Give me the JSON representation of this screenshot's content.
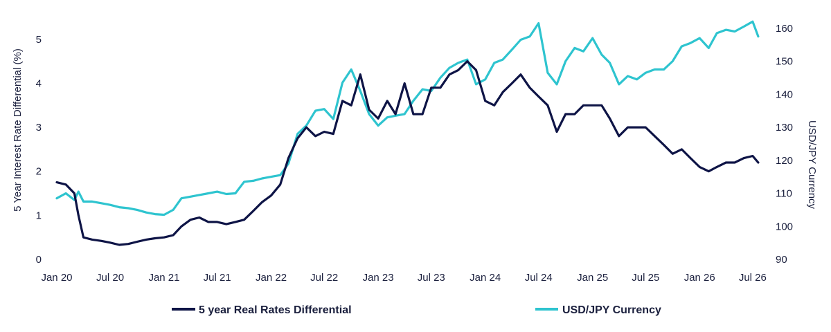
{
  "chart_data": {
    "type": "line",
    "xlabel": "",
    "ylabel_left": "5 Year Interest Rate Differential (%)",
    "ylabel_right": "USD/JPY Currency",
    "x_ticks": [
      "Jan 20",
      "Jul 20",
      "Jan 21",
      "Jul 21",
      "Jan 22",
      "Jul 22",
      "Jan 23",
      "Jul 23",
      "Jan 24",
      "Jul 24",
      "Jan 25",
      "Jul 25",
      "Jan 26",
      "Jul 26"
    ],
    "y_left_ticks": [
      0,
      1,
      2,
      3,
      4,
      5
    ],
    "y_right_ticks": [
      90,
      100,
      110,
      120,
      130,
      140,
      150,
      160
    ],
    "ylim_left": [
      0,
      5.5
    ],
    "ylim_right": [
      90,
      163.3
    ],
    "x_range": [
      "2020-01-01",
      "2026-08-01"
    ],
    "grid": false,
    "legend_position": "bottom",
    "colors": {
      "rates": "#0e1446",
      "usdjpy": "#2ec4cf",
      "text": "#1a1f3d"
    },
    "series": [
      {
        "name": "5 year Real Rates Differential",
        "axis": "left",
        "x": [
          "2020-01-01",
          "2020-02-01",
          "2020-03-01",
          "2020-03-15",
          "2020-04-01",
          "2020-05-01",
          "2020-06-01",
          "2020-07-01",
          "2020-08-01",
          "2020-09-01",
          "2020-10-01",
          "2020-11-01",
          "2020-12-01",
          "2021-01-01",
          "2021-02-01",
          "2021-03-01",
          "2021-04-01",
          "2021-05-01",
          "2021-06-01",
          "2021-07-01",
          "2021-08-01",
          "2021-09-01",
          "2021-10-01",
          "2021-11-01",
          "2021-12-01",
          "2022-01-01",
          "2022-02-01",
          "2022-03-01",
          "2022-04-01",
          "2022-05-01",
          "2022-06-01",
          "2022-07-01",
          "2022-08-01",
          "2022-09-01",
          "2022-10-01",
          "2022-11-01",
          "2022-12-01",
          "2023-01-01",
          "2023-02-01",
          "2023-03-01",
          "2023-04-01",
          "2023-05-01",
          "2023-06-01",
          "2023-07-01",
          "2023-08-01",
          "2023-09-01",
          "2023-10-01",
          "2023-11-01",
          "2023-12-01",
          "2024-01-01",
          "2024-02-01",
          "2024-03-01",
          "2024-04-01",
          "2024-05-01",
          "2024-06-01",
          "2024-07-01",
          "2024-08-01",
          "2024-09-01",
          "2024-10-01",
          "2024-11-01",
          "2024-12-01",
          "2025-01-01",
          "2025-02-01",
          "2025-03-01",
          "2025-04-01",
          "2025-05-01",
          "2025-06-01",
          "2025-07-01",
          "2025-08-01",
          "2025-09-01",
          "2025-10-01",
          "2025-11-01",
          "2025-12-01",
          "2026-01-01",
          "2026-02-01",
          "2026-03-01",
          "2026-04-01",
          "2026-05-01",
          "2026-06-01",
          "2026-07-01",
          "2026-07-20"
        ],
        "values": [
          1.75,
          1.7,
          1.5,
          1.0,
          0.5,
          0.45,
          0.42,
          0.38,
          0.33,
          0.35,
          0.4,
          0.45,
          0.48,
          0.5,
          0.55,
          0.75,
          0.9,
          0.95,
          0.85,
          0.85,
          0.8,
          0.85,
          0.9,
          1.1,
          1.3,
          1.45,
          1.7,
          2.3,
          2.75,
          3.0,
          2.8,
          2.9,
          2.85,
          3.6,
          3.5,
          4.2,
          3.4,
          3.2,
          3.6,
          3.3,
          4.0,
          3.3,
          3.3,
          3.9,
          3.9,
          4.2,
          4.3,
          4.5,
          4.3,
          3.6,
          3.5,
          3.8,
          4.0,
          4.2,
          3.9,
          3.7,
          3.5,
          2.9,
          3.3,
          3.3,
          3.5,
          3.5,
          3.5,
          3.2,
          2.8,
          3.0,
          3.0,
          3.0,
          2.8,
          2.6,
          2.4,
          2.5,
          2.3,
          2.1,
          2.0,
          2.1,
          2.2,
          2.2,
          2.3,
          2.35,
          2.2
        ]
      },
      {
        "name": "USD/JPY Currency",
        "axis": "right",
        "x": [
          "2020-01-01",
          "2020-02-01",
          "2020-03-01",
          "2020-03-15",
          "2020-04-01",
          "2020-05-01",
          "2020-06-01",
          "2020-07-01",
          "2020-08-01",
          "2020-09-01",
          "2020-10-01",
          "2020-11-01",
          "2020-12-01",
          "2021-01-01",
          "2021-02-01",
          "2021-03-01",
          "2021-04-01",
          "2021-05-01",
          "2021-06-01",
          "2021-07-01",
          "2021-08-01",
          "2021-09-01",
          "2021-10-01",
          "2021-11-01",
          "2021-12-01",
          "2022-01-01",
          "2022-02-01",
          "2022-03-01",
          "2022-04-01",
          "2022-05-01",
          "2022-06-01",
          "2022-07-01",
          "2022-08-01",
          "2022-09-01",
          "2022-10-01",
          "2022-11-01",
          "2022-12-01",
          "2023-01-01",
          "2023-02-01",
          "2023-03-01",
          "2023-04-01",
          "2023-05-01",
          "2023-06-01",
          "2023-07-01",
          "2023-08-01",
          "2023-09-01",
          "2023-10-01",
          "2023-11-01",
          "2023-12-01",
          "2024-01-01",
          "2024-02-01",
          "2024-03-01",
          "2024-04-01",
          "2024-05-01",
          "2024-06-01",
          "2024-07-01",
          "2024-08-01",
          "2024-09-01",
          "2024-10-01",
          "2024-11-01",
          "2024-12-01",
          "2025-01-01",
          "2025-02-01",
          "2025-03-01",
          "2025-04-01",
          "2025-05-01",
          "2025-06-01",
          "2025-07-01",
          "2025-08-01",
          "2025-09-01",
          "2025-10-01",
          "2025-11-01",
          "2025-12-01",
          "2026-01-01",
          "2026-02-01",
          "2026-03-01",
          "2026-04-01",
          "2026-05-01",
          "2026-06-01",
          "2026-07-01",
          "2026-07-20"
        ],
        "values": [
          108.5,
          110.0,
          108.0,
          110.5,
          107.5,
          107.5,
          107.0,
          106.5,
          105.8,
          105.5,
          105.0,
          104.2,
          103.7,
          103.5,
          105.0,
          108.5,
          109.0,
          109.5,
          110.0,
          110.5,
          109.8,
          110.0,
          113.5,
          113.8,
          114.5,
          115.0,
          115.5,
          119.0,
          128.0,
          130.5,
          135.0,
          135.5,
          132.5,
          143.5,
          147.5,
          141.0,
          134.0,
          130.5,
          133.0,
          133.5,
          134.0,
          138.0,
          141.5,
          141.0,
          145.0,
          148.0,
          149.5,
          150.5,
          143.0,
          144.5,
          149.5,
          150.5,
          153.5,
          156.5,
          157.5,
          161.5,
          146.5,
          143.0,
          150.0,
          154.0,
          153.0,
          157.0,
          152.0,
          149.5,
          143.0,
          145.5,
          144.5,
          146.5,
          147.5,
          147.5,
          150.0,
          154.5,
          155.5,
          157.0,
          154.0,
          158.5,
          159.5,
          159.0,
          160.5,
          162.0,
          157.5
        ]
      }
    ]
  }
}
